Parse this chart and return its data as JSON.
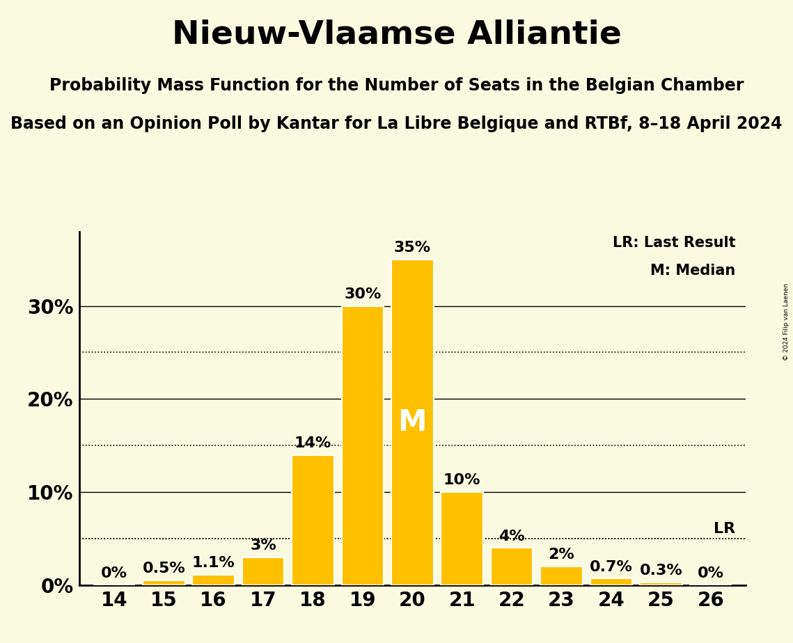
{
  "title": "Nieuw-Vlaamse Alliantie",
  "subtitle1": "Probability Mass Function for the Number of Seats in the Belgian Chamber",
  "subtitle2": "Based on an Opinion Poll by Kantar for La Libre Belgique and RTBf, 8–18 April 2024",
  "copyright": "© 2024 Filip van Laenen",
  "seats": [
    14,
    15,
    16,
    17,
    18,
    19,
    20,
    21,
    22,
    23,
    24,
    25,
    26
  ],
  "probabilities": [
    0.0,
    0.5,
    1.1,
    3.0,
    14.0,
    30.0,
    35.0,
    10.0,
    4.0,
    2.0,
    0.7,
    0.3,
    0.0
  ],
  "bar_color": "#FFC000",
  "bar_edge_color": "#FFFFFF",
  "background_color": "#FAFAE0",
  "text_color": "#000000",
  "median_seat": 20,
  "lr_value": 5.0,
  "lr_seat": 24,
  "yticks": [
    0,
    10,
    20,
    30
  ],
  "ytick_labels": [
    "0%",
    "10%",
    "20%",
    "30%"
  ],
  "dotted_yticks": [
    5,
    15,
    25
  ],
  "ylim": [
    0,
    38
  ],
  "legend_lr": "LR: Last Result",
  "legend_m": "M: Median",
  "title_fontsize": 34,
  "subtitle1_fontsize": 17,
  "subtitle2_fontsize": 17,
  "axis_fontsize": 20,
  "bar_label_fontsize": 16,
  "median_label_fontsize": 30,
  "legend_fontsize": 15,
  "lr_label_fontsize": 16
}
